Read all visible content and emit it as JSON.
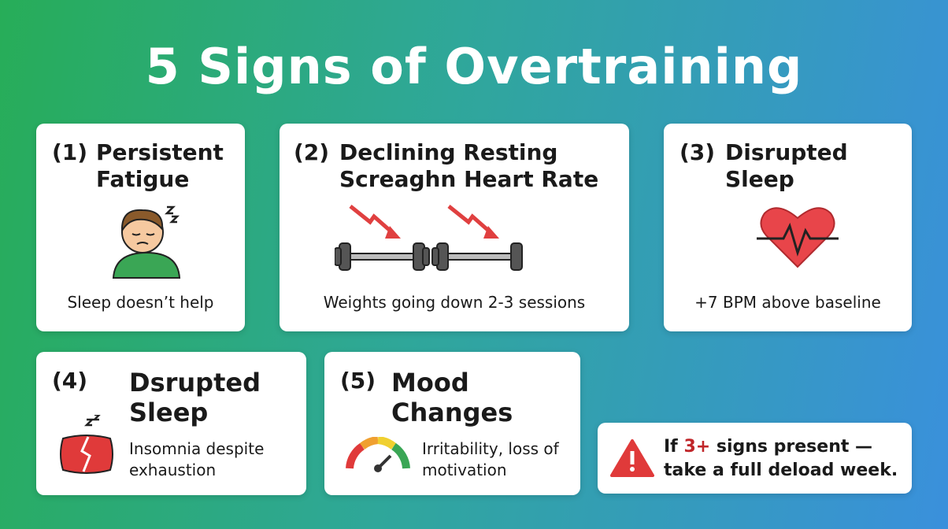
{
  "title": "5 Signs of Overtraining",
  "cards": [
    {
      "number": "(1)",
      "title": "Persistent Fatigue",
      "caption": "Sleep doesn’t help"
    },
    {
      "number": "(2)",
      "title": "Declining Resting Screaghn Heart Rate",
      "caption": "Weights going down 2-3 sessions"
    },
    {
      "number": "(3)",
      "title": "Disrupted Sleep",
      "caption": "+7 BPM above baseline"
    },
    {
      "number": "(4)",
      "title": "Dsrupted Sleep",
      "caption": "Insomnia despite exhaustion"
    },
    {
      "number": "(5)",
      "title": "Mood Changes",
      "caption": "Irritability, loss of motivation"
    }
  ],
  "warning": {
    "prefix": "If",
    "highlight": "3+",
    "rest": "signs present —",
    "line2": "take a full deload week."
  }
}
